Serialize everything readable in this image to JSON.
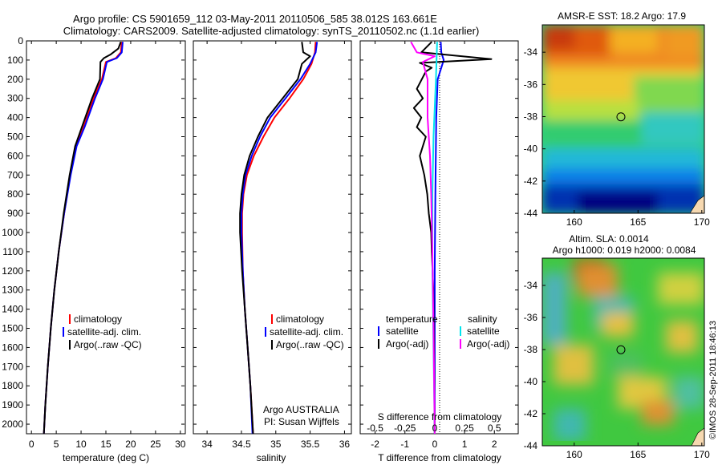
{
  "title_line1": "Argo profile: CS 5901659_112 03-May-2011 20110506_585 38.012S 163.661E",
  "title_line2": "Climatology: CARS2009. Satellite-adjusted climatology: synTS_20110502.nc (1.1d earlier)",
  "copyright": "©IMOS 28-Sep-2011 18:46:13",
  "colors": {
    "climatology": "#ff0000",
    "satellite": "#0000ff",
    "argo": "#000000",
    "sal_satellite": "#00e5ee",
    "sal_argo": "#ff00ff"
  },
  "chart_data": [
    {
      "id": "temperature",
      "type": "line",
      "xlabel": "temperature (deg C)",
      "ylabel": "",
      "xlim": [
        -1,
        31
      ],
      "ylim": [
        2050,
        0
      ],
      "x_ticks": [
        0,
        5,
        10,
        15,
        20,
        25,
        30
      ],
      "x_tick_labels": [
        "0",
        "5",
        "10",
        "15",
        "20",
        "25",
        "30"
      ],
      "y_ticks": [
        0,
        100,
        200,
        300,
        400,
        500,
        600,
        700,
        800,
        900,
        1000,
        1100,
        1200,
        1300,
        1400,
        1500,
        1600,
        1700,
        1800,
        1900,
        2000
      ],
      "y_tick_labels": [
        "0",
        "100",
        "200",
        "300",
        "400",
        "500",
        "600",
        "700",
        "800",
        "900",
        "1000",
        "1100",
        "1200",
        "1300",
        "1400",
        "1500",
        "1600",
        "1700",
        "1800",
        "1900",
        "2000"
      ],
      "legend": {
        "placement": "lower-middle",
        "entries": [
          "climatology",
          "satellite-adj. clim.",
          "Argo(..raw -QC)"
        ]
      },
      "series": [
        {
          "name": "climatology",
          "color_key": "climatology",
          "points": [
            [
              18.2,
              5
            ],
            [
              18.0,
              60
            ],
            [
              17.0,
              90
            ],
            [
              15.0,
              110
            ],
            [
              14.2,
              200
            ],
            [
              12.5,
              300
            ],
            [
              10.5,
              450
            ],
            [
              9.0,
              550
            ],
            [
              7.8,
              700
            ],
            [
              6.6,
              900
            ],
            [
              5.5,
              1100
            ],
            [
              4.6,
              1300
            ],
            [
              3.9,
              1500
            ],
            [
              3.3,
              1700
            ],
            [
              2.8,
              1900
            ],
            [
              2.5,
              2050
            ]
          ]
        },
        {
          "name": "satellite-adj. clim.",
          "color_key": "satellite",
          "points": [
            [
              18.4,
              5
            ],
            [
              18.2,
              60
            ],
            [
              17.2,
              90
            ],
            [
              15.2,
              110
            ],
            [
              14.4,
              200
            ],
            [
              12.8,
              300
            ],
            [
              10.7,
              450
            ],
            [
              9.1,
              550
            ],
            [
              7.9,
              700
            ],
            [
              6.6,
              900
            ],
            [
              5.5,
              1100
            ],
            [
              4.6,
              1300
            ],
            [
              3.9,
              1500
            ],
            [
              3.3,
              1700
            ],
            [
              2.8,
              1900
            ],
            [
              2.5,
              2050
            ]
          ]
        },
        {
          "name": "Argo(..raw -QC)",
          "color_key": "argo",
          "points": [
            [
              18.0,
              5
            ],
            [
              17.5,
              40
            ],
            [
              16.0,
              70
            ],
            [
              14.6,
              90
            ],
            [
              13.9,
              110
            ],
            [
              13.8,
              200
            ],
            [
              12.2,
              300
            ],
            [
              10.3,
              440
            ],
            [
              8.8,
              550
            ],
            [
              7.7,
              700
            ],
            [
              6.5,
              900
            ],
            [
              5.5,
              1100
            ],
            [
              4.6,
              1300
            ],
            [
              3.9,
              1500
            ],
            [
              3.3,
              1700
            ],
            [
              2.8,
              1900
            ],
            [
              2.5,
              2050
            ]
          ]
        }
      ]
    },
    {
      "id": "salinity",
      "type": "line",
      "xlabel": "salinity",
      "xlim": [
        33.8,
        36.1
      ],
      "ylim": [
        2050,
        0
      ],
      "x_ticks": [
        34,
        34.5,
        35,
        35.5,
        36
      ],
      "x_tick_labels": [
        "34",
        "34.5",
        "35",
        "35.5",
        "36"
      ],
      "annotation_line1": "Argo AUSTRALIA",
      "annotation_line2": "PI: Susan Wijffels",
      "legend": {
        "placement": "lower-right",
        "entries": [
          "climatology",
          "satellite-adj. clim.",
          "Argo(..raw -QC)"
        ]
      },
      "series": [
        {
          "name": "climatology",
          "color_key": "climatology",
          "points": [
            [
              35.58,
              5
            ],
            [
              35.57,
              60
            ],
            [
              35.52,
              120
            ],
            [
              35.4,
              200
            ],
            [
              35.2,
              300
            ],
            [
              34.98,
              400
            ],
            [
              34.82,
              500
            ],
            [
              34.68,
              600
            ],
            [
              34.58,
              700
            ],
            [
              34.53,
              800
            ],
            [
              34.51,
              900
            ],
            [
              34.51,
              1000
            ],
            [
              34.52,
              1200
            ],
            [
              34.55,
              1400
            ],
            [
              34.59,
              1600
            ],
            [
              34.63,
              1800
            ],
            [
              34.67,
              2050
            ]
          ]
        },
        {
          "name": "satellite-adj. clim.",
          "color_key": "satellite",
          "points": [
            [
              35.6,
              5
            ],
            [
              35.58,
              60
            ],
            [
              35.5,
              120
            ],
            [
              35.36,
              200
            ],
            [
              35.14,
              300
            ],
            [
              34.92,
              400
            ],
            [
              34.77,
              500
            ],
            [
              34.65,
              600
            ],
            [
              34.56,
              700
            ],
            [
              34.52,
              800
            ],
            [
              34.5,
              900
            ],
            [
              34.5,
              1000
            ],
            [
              34.52,
              1200
            ],
            [
              34.55,
              1400
            ],
            [
              34.59,
              1600
            ],
            [
              34.63,
              1800
            ],
            [
              34.66,
              2050
            ]
          ]
        },
        {
          "name": "Argo(..raw -QC)",
          "color_key": "argo",
          "points": [
            [
              35.38,
              5
            ],
            [
              35.4,
              60
            ],
            [
              35.5,
              80
            ],
            [
              35.38,
              120
            ],
            [
              35.32,
              200
            ],
            [
              35.1,
              300
            ],
            [
              34.88,
              400
            ],
            [
              34.74,
              500
            ],
            [
              34.62,
              600
            ],
            [
              34.54,
              700
            ],
            [
              34.5,
              800
            ],
            [
              34.48,
              900
            ],
            [
              34.48,
              1000
            ],
            [
              34.51,
              1200
            ],
            [
              34.55,
              1400
            ],
            [
              34.59,
              1600
            ],
            [
              34.63,
              1800
            ],
            [
              34.67,
              2050
            ]
          ]
        }
      ]
    },
    {
      "id": "difference",
      "type": "line",
      "xlabel": "T difference from climatology",
      "xlabel_top": "S difference from climatology",
      "xlim": [
        -2.5,
        2.8
      ],
      "ylim": [
        2050,
        0
      ],
      "x_ticks": [
        -2,
        -1,
        0,
        1,
        2
      ],
      "x_tick_labels": [
        "-2",
        "-1",
        "0",
        "1",
        "2"
      ],
      "s_ticks": [
        -0.5,
        -0.25,
        0,
        0.25,
        0.5
      ],
      "s_tick_labels": [
        "-0.5",
        "-0.25",
        "0",
        "0.25",
        "0.5"
      ],
      "s_scale": 0.25,
      "legend": {
        "placement": "lower-middle",
        "temperature_header": "temperature",
        "salinity_header": "salinity",
        "temperature_entries": [
          "satellite",
          "Argo(-adj)"
        ],
        "salinity_entries": [
          "satellite",
          "Argo(-adj)"
        ]
      },
      "series": [
        {
          "name": "T satellite",
          "color_key": "satellite",
          "points": [
            [
              0.2,
              5
            ],
            [
              0.22,
              60
            ],
            [
              0.3,
              100
            ],
            [
              0.1,
              200
            ],
            [
              0.05,
              400
            ],
            [
              0.02,
              800
            ],
            [
              0.0,
              1200
            ],
            [
              0.0,
              2050
            ]
          ]
        },
        {
          "name": "T Argo(-adj)",
          "color_key": "argo",
          "points": [
            [
              -0.1,
              5
            ],
            [
              -0.45,
              60
            ],
            [
              1.9,
              95
            ],
            [
              -0.5,
              115
            ],
            [
              -0.1,
              140
            ],
            [
              -0.3,
              160
            ],
            [
              -0.6,
              250
            ],
            [
              -0.4,
              300
            ],
            [
              -0.7,
              350
            ],
            [
              -0.45,
              400
            ],
            [
              -0.6,
              450
            ],
            [
              -0.3,
              500
            ],
            [
              -0.5,
              600
            ],
            [
              -0.35,
              700
            ],
            [
              -0.25,
              800
            ],
            [
              -0.2,
              900
            ],
            [
              -0.12,
              1000
            ],
            [
              -0.1,
              1100
            ],
            [
              -0.05,
              1300
            ],
            [
              -0.03,
              1500
            ],
            [
              -0.02,
              1700
            ],
            [
              0.0,
              2050
            ]
          ]
        },
        {
          "name": "S satellite",
          "color_key": "sal_satellite",
          "points": [
            [
              0.02,
              5
            ],
            [
              0.01,
              200
            ],
            [
              -0.01,
              500
            ],
            [
              -0.02,
              800
            ],
            [
              -0.02,
              1200
            ],
            [
              -0.01,
              1600
            ],
            [
              0.0,
              2050
            ]
          ]
        },
        {
          "name": "S Argo(-adj)",
          "color_key": "sal_argo",
          "points": [
            [
              -0.2,
              5
            ],
            [
              -0.15,
              60
            ],
            [
              0.0,
              80
            ],
            [
              -0.1,
              110
            ],
            [
              -0.06,
              200
            ],
            [
              -0.06,
              400
            ],
            [
              -0.04,
              600
            ],
            [
              -0.03,
              800
            ],
            [
              -0.02,
              1100
            ],
            [
              -0.01,
              1500
            ],
            [
              0.0,
              2050
            ]
          ]
        }
      ]
    },
    {
      "id": "sst_map",
      "type": "heatmap",
      "title": "AMSR-E SST: 18.2 Argo: 17.9",
      "xlim": [
        157.5,
        170.2
      ],
      "ylim": [
        -44,
        -32.3
      ],
      "x_ticks": [
        160,
        165,
        170
      ],
      "x_tick_labels": [
        "160",
        "165",
        "170"
      ],
      "y_ticks": [
        -34,
        -36,
        -38,
        -40,
        -42,
        -44
      ],
      "y_tick_labels": [
        "-34",
        "-36",
        "-38",
        "-40",
        "-42",
        "-44"
      ],
      "marker": [
        163.661,
        -38.012
      ]
    },
    {
      "id": "sla_map",
      "type": "heatmap",
      "title_line1": "Altim. SLA: 0.0014",
      "title_line2": "Argo h1000: 0.019 h2000: 0.0084",
      "xlim": [
        157.5,
        170.2
      ],
      "ylim": [
        -44,
        -32.3
      ],
      "x_ticks": [
        160,
        165,
        170
      ],
      "x_tick_labels": [
        "160",
        "165",
        "170"
      ],
      "y_ticks": [
        -34,
        -36,
        -38,
        -40,
        -42,
        -44
      ],
      "y_tick_labels": [
        "-34",
        "-36",
        "-38",
        "-40",
        "-42",
        "-44"
      ],
      "marker": [
        163.661,
        -38.012
      ]
    }
  ]
}
